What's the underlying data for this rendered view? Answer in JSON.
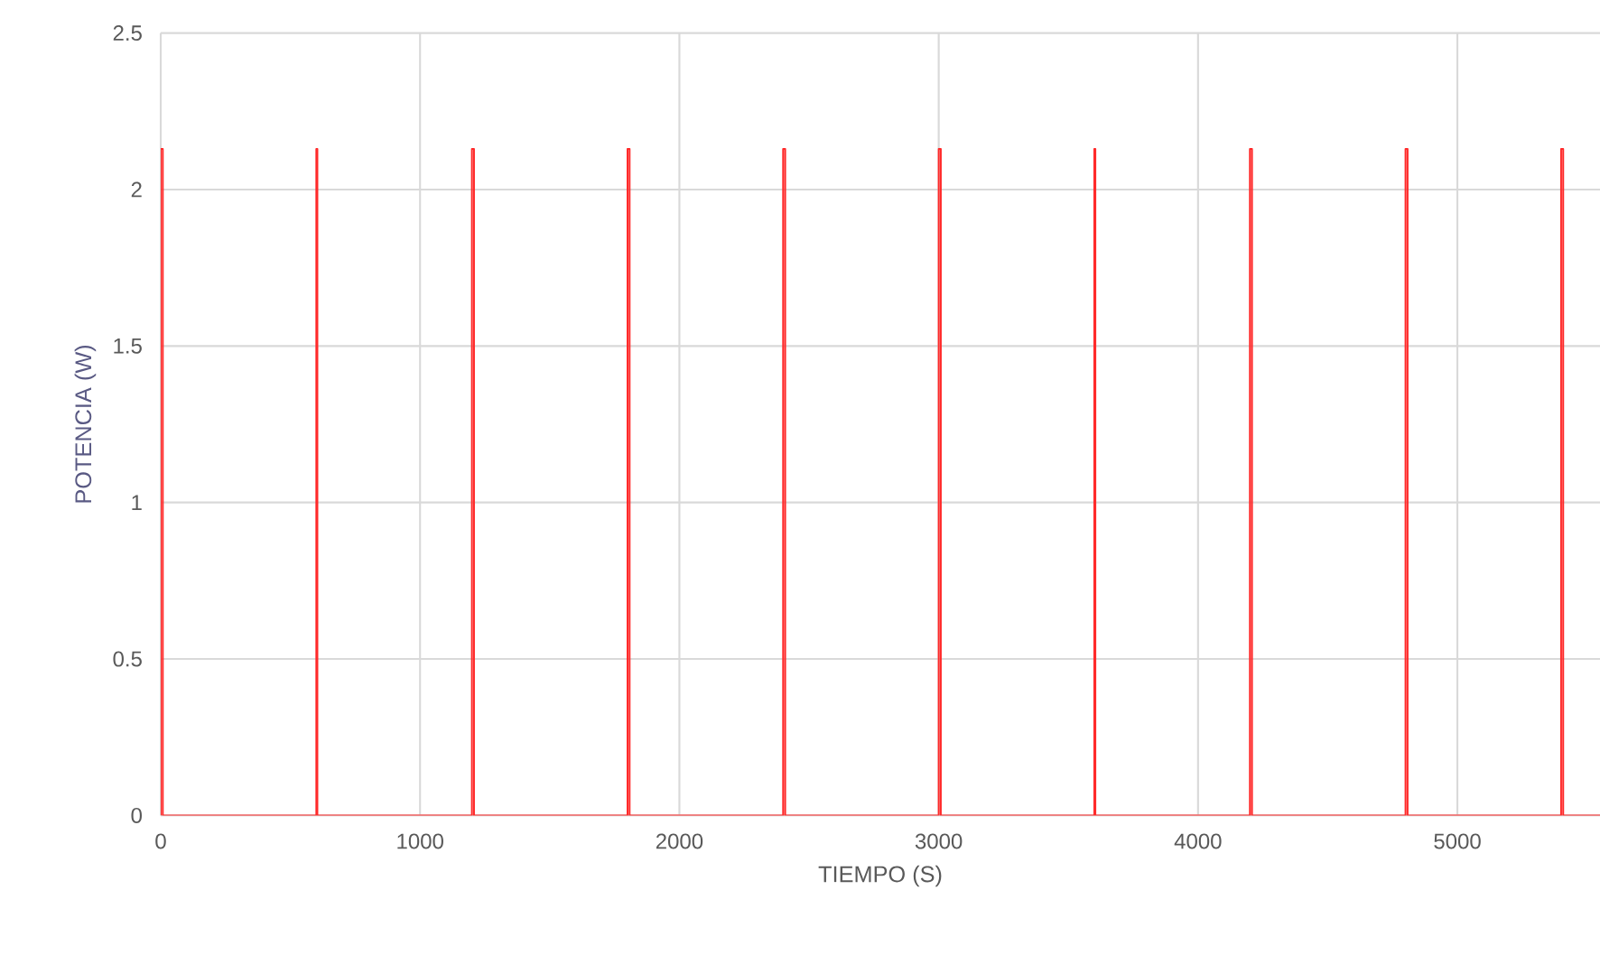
{
  "chart_data": {
    "type": "line",
    "xlabel": "TIEMPO (S)",
    "ylabel": "POTENCIA (W)",
    "series": [
      {
        "color": "#ff2a2a",
        "x": [
          0,
          0,
          8,
          8,
          600,
          600,
          604,
          604,
          1200,
          1200,
          1208,
          1208,
          1800,
          1800,
          1808,
          1808,
          2400,
          2400,
          2408,
          2408,
          3000,
          3000,
          3008,
          3008,
          3600,
          3600,
          3604,
          3604,
          4200,
          4200,
          4208,
          4208,
          4800,
          4800,
          4808,
          4808,
          5400,
          5400,
          5408,
          5408,
          5550
        ],
        "values": [
          0,
          2.13,
          2.13,
          0,
          0,
          2.13,
          2.13,
          0,
          0,
          2.13,
          2.13,
          0,
          0,
          2.13,
          2.13,
          0,
          0,
          2.13,
          2.13,
          0,
          0,
          2.13,
          2.13,
          0,
          0,
          2.13,
          2.13,
          0,
          0,
          2.13,
          2.13,
          0,
          0,
          2.13,
          2.13,
          0,
          0,
          2.13,
          2.13,
          0,
          0
        ]
      }
    ],
    "xlim": [
      0,
      5550
    ],
    "ylim": [
      0,
      2.5
    ],
    "xticks": [
      0,
      1000,
      2000,
      3000,
      4000,
      5000
    ],
    "yticks": [
      0,
      0.5,
      1,
      1.5,
      2,
      2.5
    ],
    "grid": true,
    "marker": "none",
    "line_style": "solid"
  }
}
